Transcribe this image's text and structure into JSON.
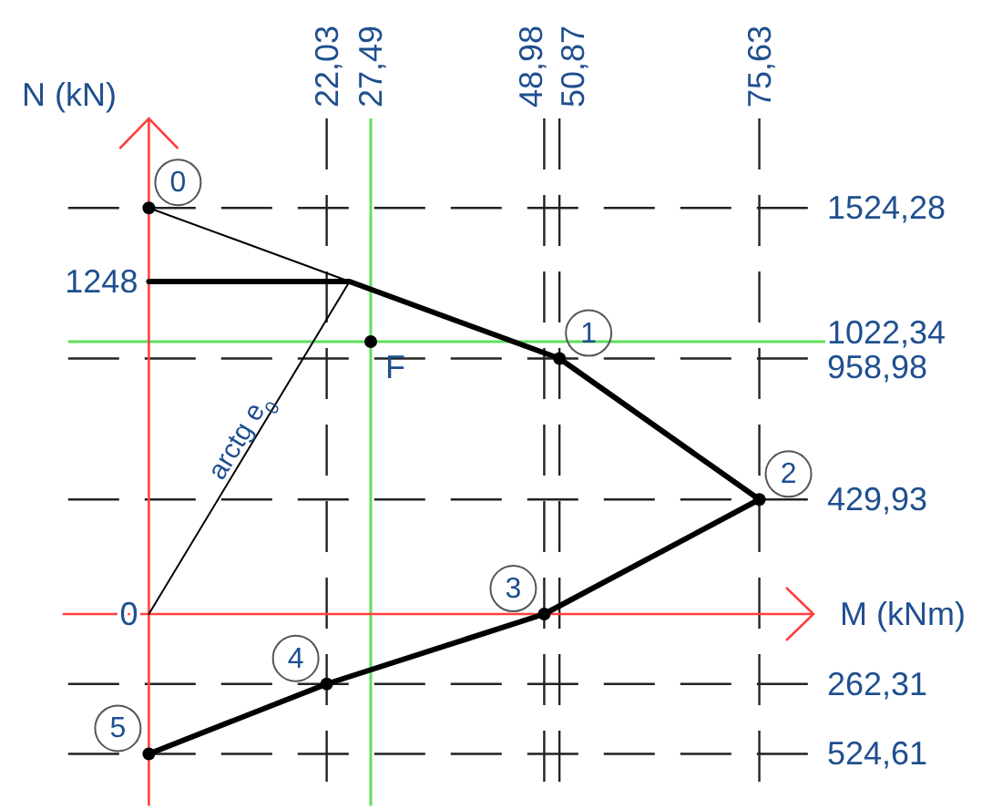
{
  "chart_data": {
    "type": "line",
    "xlabel": "M (kNm)",
    "ylabel": "N (kN)",
    "xlim": [
      -10,
      82
    ],
    "ylim": [
      -720,
      1860
    ],
    "xticks": [
      {
        "value": 22.03,
        "label": "22,03"
      },
      {
        "value": 48.98,
        "label": "48,98"
      },
      {
        "value": 50.87,
        "label": "50,87"
      },
      {
        "value": 75.63,
        "label": "75,63"
      }
    ],
    "yticks": [
      {
        "value": 0,
        "label": "0"
      },
      {
        "value": 1248,
        "label": "1248"
      }
    ],
    "y2lim": [
      -720,
      1860
    ],
    "y2ticks": [
      {
        "value": 1524.28,
        "label": "1524,28"
      },
      {
        "value": 958.98,
        "label": "958,98"
      },
      {
        "value": 429.93,
        "label": "429,93"
      },
      {
        "value": -262.31,
        "label": "262,31"
      },
      {
        "value": -524.61,
        "label": "524,61"
      }
    ],
    "grid": true,
    "series": [
      {
        "color": "#000000",
        "x": [
          0,
          24.86,
          50.87,
          75.63,
          48.98,
          22.03,
          0
        ],
        "values": [
          1248,
          1248,
          958.98,
          429.93,
          0,
          -262.31,
          -524.61
        ],
        "marker": "none"
      },
      {
        "color": "#000000",
        "x": [
          0,
          24.86
        ],
        "values": [
          1524.28,
          1248
        ],
        "marker": "none"
      },
      {
        "color": "#000000",
        "x": [
          0,
          24.86
        ],
        "values": [
          0,
          1248
        ],
        "marker": "none"
      },
      {
        "type": "scatter",
        "color": "#000000",
        "x": [
          0,
          50.87,
          75.63,
          48.98,
          22.03,
          0
        ],
        "values": [
          1524.28,
          958.98,
          429.93,
          0,
          -262.31,
          -524.61
        ],
        "marker": "circle"
      },
      {
        "type": "scatter",
        "name": "F",
        "color": "#000000",
        "x": [
          27.49
        ],
        "values": [
          1022.34
        ],
        "marker": "circle"
      }
    ],
    "ref_lines": [
      {
        "axis": "x",
        "value": 27.49,
        "label": "27,49",
        "color": "#5ee05e"
      },
      {
        "axis": "y",
        "value": 1022.34,
        "label": "1022,34",
        "color": "#5ee05e"
      },
      {
        "axis": "y",
        "value": 0,
        "color": "#ff4040"
      }
    ],
    "annotations": [
      {
        "text": "0",
        "x": 0,
        "y": 1524.28
      },
      {
        "text": "1",
        "x": 50.87,
        "y": 958.98
      },
      {
        "text": "2",
        "x": 75.63,
        "y": 429.93
      },
      {
        "text": "3",
        "x": 48.98,
        "y": 0
      },
      {
        "text": "4",
        "x": 22.03,
        "y": -262.31
      },
      {
        "text": "5",
        "x": 0,
        "y": -524.61
      },
      {
        "text": "arctg e$_{0}$",
        "x": 12.7,
        "y": 638
      }
    ]
  }
}
